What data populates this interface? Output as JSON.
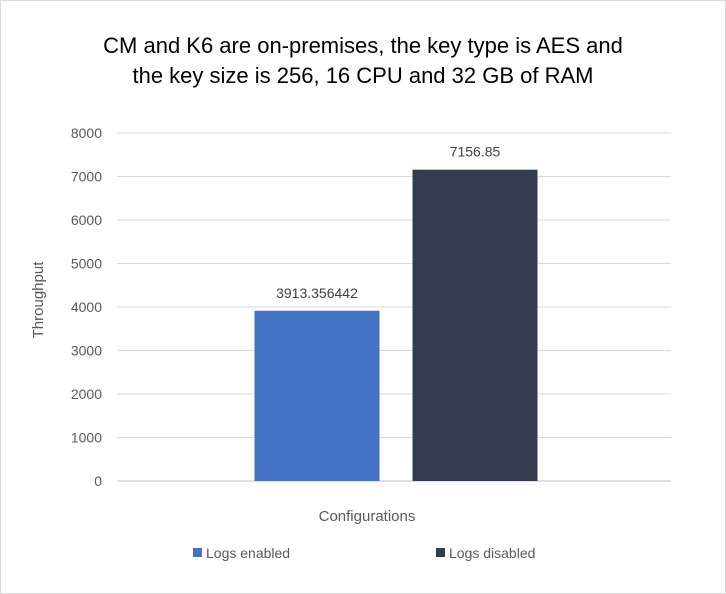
{
  "chart_data": {
    "type": "bar",
    "title_lines": [
      "CM and K6 are on-premises, the key type is AES and",
      "the key size is 256, 16 CPU and 32 GB of RAM"
    ],
    "xlabel": "Configurations",
    "ylabel": "Throughput",
    "ylim": [
      0,
      8000
    ],
    "yticks": [
      0,
      1000,
      2000,
      3000,
      4000,
      5000,
      6000,
      7000,
      8000
    ],
    "grid": true,
    "legend_position": "bottom",
    "series": [
      {
        "name": "Logs enabled",
        "value": 3913.356442,
        "label": "3913.356442",
        "color": "#4472c4"
      },
      {
        "name": "Logs disabled",
        "value": 7156.85,
        "label": "7156.85",
        "color": "#323c4c"
      }
    ]
  }
}
